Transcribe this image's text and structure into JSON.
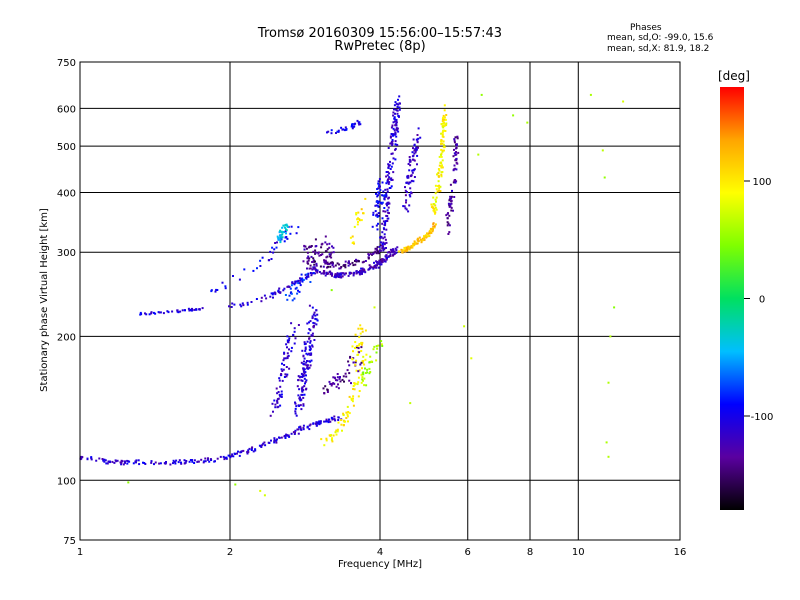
{
  "header": {
    "title": "Tromsø 20160309 15:56:00–15:57:43",
    "subtitle": "RwPretec (8p)",
    "stats_heading": "Phases",
    "stats_o": "mean, sd,O: -99.0, 15.6",
    "stats_x": "mean, sd,X:  81.9, 18.2"
  },
  "colorbar": {
    "label": "[deg]",
    "range": [
      -180,
      180
    ],
    "ticks": [
      100,
      0,
      -100
    ],
    "stops": [
      "#000000",
      "#5a00a0",
      "#0000ff",
      "#00bfff",
      "#00e060",
      "#7fff00",
      "#ffff00",
      "#ffa500",
      "#ff0000"
    ]
  },
  "chart_data": {
    "type": "scatter",
    "title": "Tromsø 20160309 15:56:00–15:57:43",
    "subtitle": "RwPretec (8p)",
    "xlabel": "Frequency [MHz]",
    "ylabel": "Stationary phase Virtual Height [km]",
    "xscale": "log",
    "yscale": "log",
    "xlim": [
      1,
      16
    ],
    "ylim": [
      75,
      750
    ],
    "xticks": [
      1,
      2,
      4,
      6,
      8,
      10,
      16
    ],
    "yticks": [
      75,
      100,
      200,
      300,
      400,
      500,
      600,
      750
    ],
    "grid": true,
    "color_by": "phase [deg]",
    "point_groups": [
      {
        "x": [
          1.0,
          1.1,
          1.2,
          1.35,
          1.55,
          1.8,
          2.0,
          2.2,
          2.45,
          2.7,
          2.9,
          3.1,
          3.3
        ],
        "y": [
          112,
          110,
          109,
          109,
          109,
          110,
          112,
          116,
          121,
          126,
          130,
          133,
          135
        ],
        "phase": -110,
        "n": 220,
        "jitter_x": 0.02,
        "jitter_y": 0.01
      },
      {
        "x": [
          1.3,
          1.45,
          1.6,
          1.75
        ],
        "y": [
          223,
          224,
          226,
          229
        ],
        "phase": -105,
        "n": 40,
        "jitter_x": 0.01,
        "jitter_y": 0.005
      },
      {
        "x": [
          2.0,
          2.15,
          2.35,
          2.5,
          2.65,
          2.8,
          2.95
        ],
        "y": [
          232,
          234,
          240,
          248,
          256,
          264,
          272
        ],
        "phase": -110,
        "n": 60,
        "jitter_x": 0.01,
        "jitter_y": 0.01
      },
      {
        "x": [
          1.8,
          2.0,
          2.2,
          2.35,
          2.45,
          2.55,
          2.65,
          2.75
        ],
        "y": [
          245,
          260,
          275,
          290,
          305,
          320,
          330,
          340
        ],
        "phase": -100,
        "n": 40,
        "jitter_x": 0.02,
        "jitter_y": 0.02
      },
      {
        "x": [
          2.9,
          3.1,
          3.3,
          3.5,
          3.7,
          3.9,
          4.05,
          4.2,
          4.3
        ],
        "y": [
          278,
          272,
          268,
          270,
          274,
          280,
          288,
          296,
          305
        ],
        "phase": -120,
        "n": 180,
        "jitter_x": 0.015,
        "jitter_y": 0.01
      },
      {
        "x": [
          2.9,
          3.1,
          3.3,
          3.5,
          3.7,
          3.9,
          4.05
        ],
        "y": [
          288,
          282,
          280,
          284,
          290,
          298,
          310
        ],
        "phase": -140,
        "n": 90,
        "jitter_x": 0.015,
        "jitter_y": 0.015
      },
      {
        "x": [
          2.8,
          2.9,
          3.05,
          3.2
        ],
        "y": [
          290,
          300,
          310,
          295
        ],
        "phase": -135,
        "n": 60,
        "jitter_x": 0.02,
        "jitter_y": 0.05
      },
      {
        "x": [
          2.5,
          2.55,
          2.6
        ],
        "y": [
          320,
          330,
          340
        ],
        "phase": -40,
        "n": 30,
        "jitter_x": 0.01,
        "jitter_y": 0.02
      },
      {
        "x": [
          2.45,
          2.5,
          2.55,
          2.6,
          2.65,
          2.7
        ],
        "y": [
          140,
          150,
          165,
          180,
          195,
          210
        ],
        "phase": -110,
        "n": 70,
        "jitter_x": 0.02,
        "jitter_y": 0.04
      },
      {
        "x": [
          2.75,
          2.8,
          2.85,
          2.9,
          2.95
        ],
        "y": [
          140,
          160,
          180,
          205,
          230
        ],
        "phase": -110,
        "n": 140,
        "jitter_x": 0.02,
        "jitter_y": 0.05
      },
      {
        "x": [
          2.6,
          2.75,
          2.9
        ],
        "y": [
          240,
          255,
          270
        ],
        "phase": -85,
        "n": 30,
        "jitter_x": 0.02,
        "jitter_y": 0.03
      },
      {
        "x": [
          3.05,
          3.2,
          3.35,
          3.5,
          3.6,
          3.7
        ],
        "y": [
          120,
          123,
          130,
          142,
          160,
          185
        ],
        "phase": 95,
        "n": 70,
        "jitter_x": 0.02,
        "jitter_y": 0.02
      },
      {
        "x": [
          3.1,
          3.3,
          3.5,
          3.6
        ],
        "y": [
          155,
          160,
          170,
          185
        ],
        "phase": -140,
        "n": 50,
        "jitter_x": 0.03,
        "jitter_y": 0.04
      },
      {
        "x": [
          3.7,
          3.8,
          3.9,
          4.0
        ],
        "y": [
          160,
          170,
          182,
          195
        ],
        "phase": 60,
        "n": 30,
        "jitter_x": 0.02,
        "jitter_y": 0.02
      },
      {
        "x": [
          3.5,
          3.6,
          3.7
        ],
        "y": [
          170,
          190,
          210
        ],
        "phase": 100,
        "n": 25,
        "jitter_x": 0.02,
        "jitter_y": 0.03
      },
      {
        "x": [
          3.1,
          3.3,
          3.5,
          3.65
        ],
        "y": [
          530,
          540,
          548,
          560
        ],
        "phase": -100,
        "n": 30,
        "jitter_x": 0.01,
        "jitter_y": 0.01
      },
      {
        "x": [
          4.05,
          4.1,
          4.15,
          4.2,
          4.25,
          4.3,
          4.35
        ],
        "y": [
          310,
          350,
          400,
          450,
          500,
          560,
          620
        ],
        "phase": -110,
        "n": 160,
        "jitter_x": 0.015,
        "jitter_y": 0.04
      },
      {
        "x": [
          3.9,
          4.0,
          4.05
        ],
        "y": [
          350,
          380,
          420
        ],
        "phase": -100,
        "n": 50,
        "jitter_x": 0.02,
        "jitter_y": 0.05
      },
      {
        "x": [
          4.4,
          4.5,
          4.6,
          4.7,
          4.8,
          4.9,
          5.0,
          5.1,
          5.2
        ],
        "y": [
          300,
          303,
          307,
          312,
          317,
          322,
          328,
          335,
          345
        ],
        "phase": 120,
        "n": 90,
        "jitter_x": 0.01,
        "jitter_y": 0.01
      },
      {
        "x": [
          5.1,
          5.2,
          5.3,
          5.35,
          5.4
        ],
        "y": [
          360,
          400,
          450,
          520,
          600
        ],
        "phase": 95,
        "n": 100,
        "jitter_x": 0.01,
        "jitter_y": 0.04
      },
      {
        "x": [
          4.5,
          4.6,
          4.7,
          4.8
        ],
        "y": [
          380,
          430,
          480,
          540
        ],
        "phase": -115,
        "n": 80,
        "jitter_x": 0.015,
        "jitter_y": 0.05
      },
      {
        "x": [
          5.45,
          5.55,
          5.65,
          5.7
        ],
        "y": [
          340,
          380,
          440,
          520
        ],
        "phase": -130,
        "n": 70,
        "jitter_x": 0.01,
        "jitter_y": 0.05
      },
      {
        "x": [
          3.5,
          3.6,
          3.7
        ],
        "y": [
          320,
          350,
          380
        ],
        "phase": 100,
        "n": 20,
        "jitter_x": 0.02,
        "jitter_y": 0.03
      },
      {
        "x": [
          1.25,
          2.05,
          2.3,
          2.35,
          3.2,
          3.9,
          4.6,
          5.9,
          6.1,
          6.4,
          7.4,
          7.9,
          10.6,
          11.3,
          11.5,
          12.3,
          11.2,
          11.4,
          11.5,
          11.6,
          6.3,
          11.8
        ],
        "y": [
          99,
          98,
          95,
          93,
          250,
          230,
          145,
          210,
          180,
          640,
          580,
          560,
          640,
          430,
          160,
          620,
          490,
          120,
          112,
          200,
          480,
          230
        ],
        "phase": 60,
        "n": 22,
        "jitter_x": 0.0,
        "jitter_y": 0.0
      }
    ]
  }
}
